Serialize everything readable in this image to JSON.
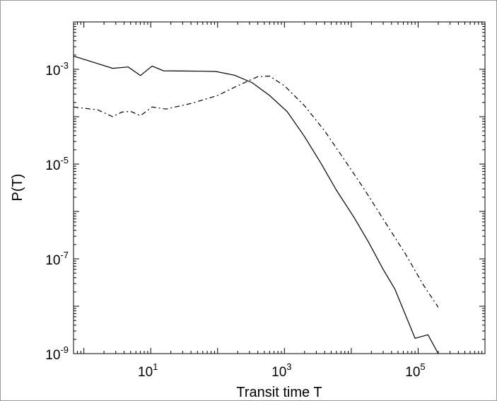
{
  "chart_data": {
    "type": "line",
    "title": "",
    "xlabel": "Transit time  T",
    "ylabel": "P(T)",
    "x_scale": "log",
    "y_scale": "log",
    "xlim": [
      0.7,
      1000000
    ],
    "ylim": [
      1e-09,
      0.01
    ],
    "grid": false,
    "legend": "none",
    "x_ticks": [
      {
        "base": "10",
        "exp": "1",
        "value": 10
      },
      {
        "base": "10",
        "exp": "3",
        "value": 1000
      },
      {
        "base": "10",
        "exp": "5",
        "value": 100000
      }
    ],
    "y_ticks": [
      {
        "base": "10",
        "exp": "-3",
        "value": 0.001
      },
      {
        "base": "10",
        "exp": "-5",
        "value": 1e-05
      },
      {
        "base": "10",
        "exp": "-7",
        "value": 1e-07
      },
      {
        "base": "10",
        "exp": "-9",
        "value": 1e-09
      }
    ],
    "series": [
      {
        "style": "solid",
        "color": "#000000",
        "points": [
          [
            0.7,
            0.0019
          ],
          [
            1.4,
            0.0014
          ],
          [
            2.7,
            0.00105
          ],
          [
            4.6,
            0.00112
          ],
          [
            7.0,
            0.00074
          ],
          [
            10.5,
            0.00117
          ],
          [
            15.5,
            0.00093
          ],
          [
            30,
            0.00092
          ],
          [
            60,
            0.00091
          ],
          [
            95,
            0.0009
          ],
          [
            180,
            0.00075
          ],
          [
            330,
            0.00052
          ],
          [
            600,
            0.00028
          ],
          [
            1100,
            0.000128
          ],
          [
            2000,
            3.8e-05
          ],
          [
            3500,
            1.05e-05
          ],
          [
            6000,
            2.8e-06
          ],
          [
            11000,
            7.5e-07
          ],
          [
            18000,
            2.3e-07
          ],
          [
            30000,
            6e-08
          ],
          [
            45000,
            2.3e-08
          ],
          [
            90000,
            2.1e-09
          ],
          [
            140000,
            2.5e-09
          ],
          [
            200000,
            1e-09
          ]
        ]
      },
      {
        "style": "dash-dot",
        "color": "#000000",
        "points": [
          [
            0.7,
            0.00016
          ],
          [
            1.6,
            0.00014
          ],
          [
            2.7,
            0.0001
          ],
          [
            3.7,
            0.000125
          ],
          [
            5,
            0.00013
          ],
          [
            7.0,
            0.000105
          ],
          [
            10.5,
            0.00016
          ],
          [
            17,
            0.000145
          ],
          [
            40,
            0.00019
          ],
          [
            100,
            0.00028
          ],
          [
            200,
            0.00045
          ],
          [
            400,
            0.0007
          ],
          [
            600,
            0.00072
          ],
          [
            1000,
            0.00045
          ],
          [
            2000,
            0.00017
          ],
          [
            4000,
            5e-05
          ],
          [
            8000,
            1.2e-05
          ],
          [
            16000,
            2.8e-06
          ],
          [
            32000,
            6e-07
          ],
          [
            64000,
            1.3e-07
          ],
          [
            120000,
            2.8e-08
          ],
          [
            200000,
            9.5e-09
          ]
        ]
      }
    ]
  }
}
